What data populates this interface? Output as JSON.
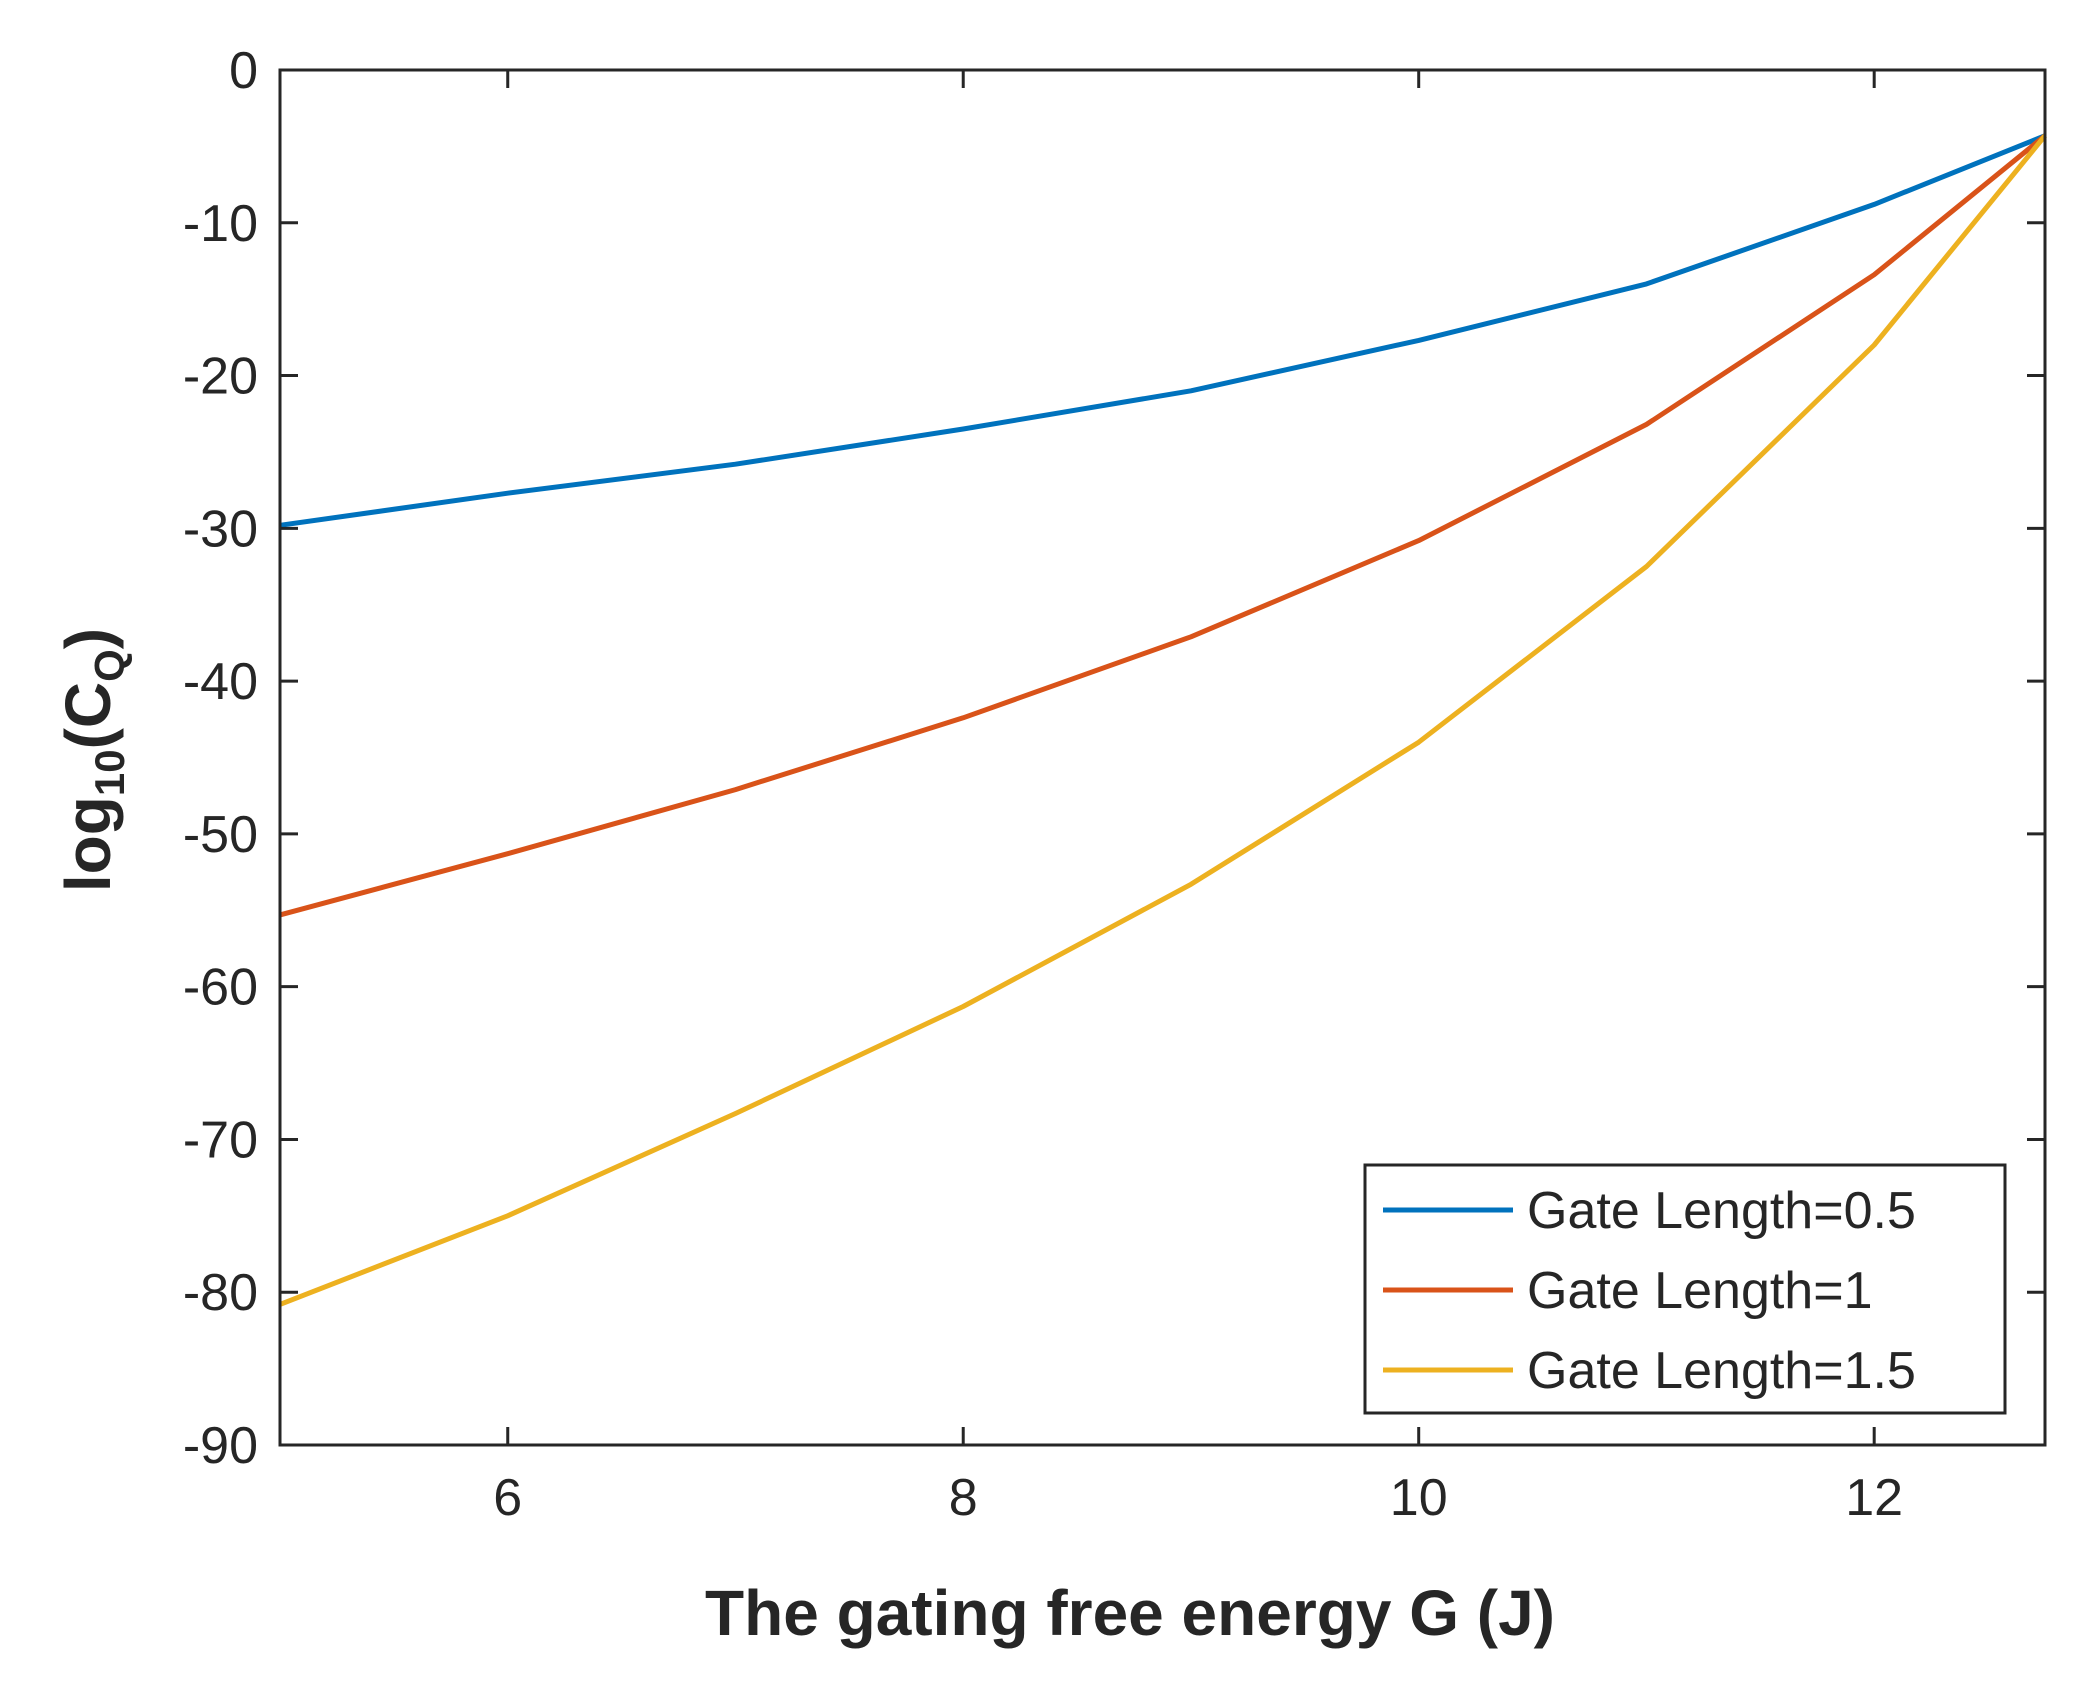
{
  "chart_data": {
    "type": "line",
    "title": "",
    "xlabel": "The gating free energy G (J)",
    "ylabel": {
      "base": "log",
      "base_sub": "10",
      "open": "(C",
      "sub": "Q",
      "close": ")"
    },
    "xlim": [
      5,
      12.75
    ],
    "ylim": [
      -90,
      0
    ],
    "xticks": [
      6,
      8,
      10,
      12
    ],
    "xtick_labels": [
      "6",
      "8",
      "10",
      "12"
    ],
    "yticks": [
      0,
      -10,
      -20,
      -30,
      -40,
      -50,
      -60,
      -70,
      -80,
      -90
    ],
    "ytick_labels": [
      "0",
      "-10",
      "-20",
      "-30",
      "-40",
      "-50",
      "-60",
      "-70",
      "-80",
      "-90"
    ],
    "grid": false,
    "legend_position": "bottom-right",
    "series": [
      {
        "name": "Gate Length=0.5",
        "color": "#0072BD",
        "x": [
          5,
          6,
          7,
          8,
          9,
          10,
          11,
          12,
          12.75
        ],
        "y": [
          -29.8,
          -27.7,
          -25.8,
          -23.5,
          -21,
          -17.7,
          -14,
          -8.8,
          -4.3
        ]
      },
      {
        "name": "Gate Length=1",
        "color": "#D95319",
        "x": [
          5,
          6,
          7,
          8,
          9,
          10,
          11,
          12,
          12.75
        ],
        "y": [
          -55.3,
          -51.3,
          -47.1,
          -42.4,
          -37.1,
          -30.8,
          -23.2,
          -13.4,
          -4.3
        ]
      },
      {
        "name": "Gate Length=1.5",
        "color": "#EDB120",
        "x": [
          5,
          6,
          7,
          8,
          9,
          10,
          11,
          12,
          12.75
        ],
        "y": [
          -80.8,
          -75,
          -68.3,
          -61.3,
          -53.3,
          -44,
          -32.5,
          -18,
          -4.3
        ]
      }
    ]
  }
}
